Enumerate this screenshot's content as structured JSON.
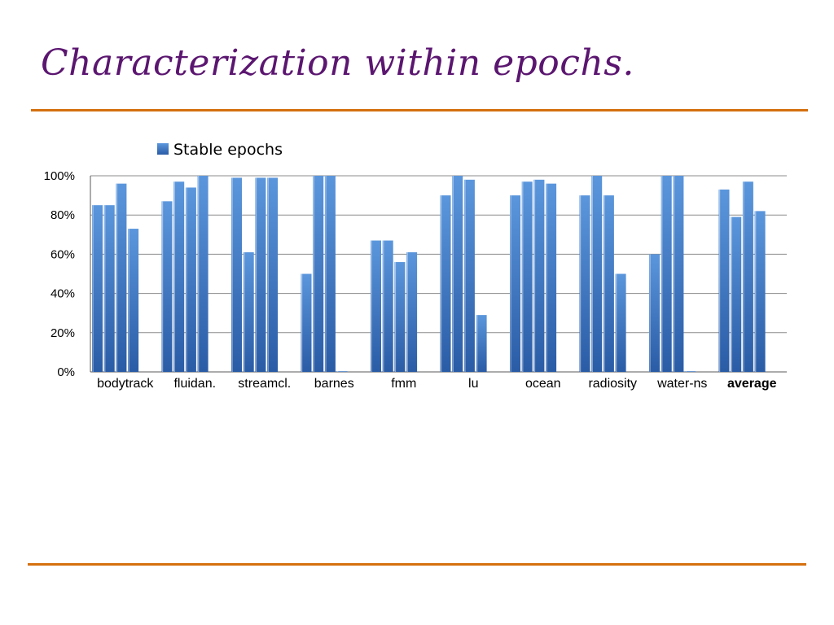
{
  "slide": {
    "title": "Characterization within epochs."
  },
  "colors": {
    "title": "#5b1670",
    "rule": "#d4700f",
    "bar_light": "#5b96dc",
    "bar_dark": "#2a5ca6",
    "grid": "#8c8c8c"
  },
  "chart_data": {
    "type": "bar",
    "title": "",
    "xlabel": "",
    "ylabel": "",
    "ylim": [
      0,
      100
    ],
    "y_ticks": [
      "0%",
      "20%",
      "40%",
      "60%",
      "80%",
      "100%"
    ],
    "grid": true,
    "legend_position": "top",
    "legend": [
      "Stable epochs"
    ],
    "categories": [
      "bodytrack",
      "fluidan.",
      "streamcl.",
      "barnes",
      "fmm",
      "lu",
      "ocean",
      "radiosity",
      "water-ns",
      "average"
    ],
    "bold_categories": [
      "average"
    ],
    "series": [
      {
        "name": "Stable epochs",
        "values": [
          [
            85,
            85,
            96,
            73
          ],
          [
            87,
            97,
            94,
            100
          ],
          [
            99,
            61,
            99,
            99
          ],
          [
            50,
            100,
            100,
            0
          ],
          [
            67,
            67,
            56,
            61
          ],
          [
            90,
            100,
            98,
            29
          ],
          [
            90,
            97,
            98,
            96
          ],
          [
            90,
            100,
            90,
            50
          ],
          [
            60,
            100,
            100,
            0
          ],
          [
            93,
            79,
            97,
            82
          ]
        ]
      }
    ]
  }
}
